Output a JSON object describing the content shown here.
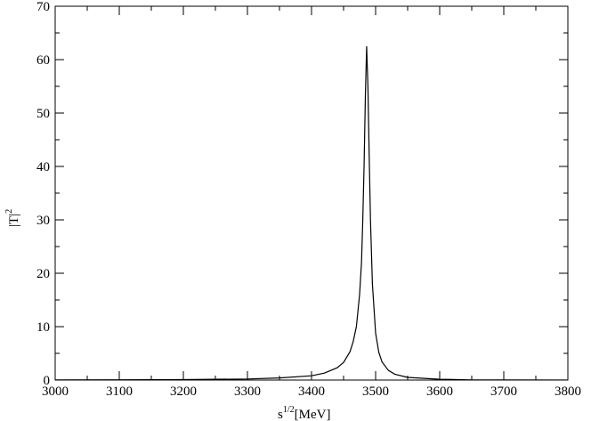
{
  "chart_data": {
    "type": "line",
    "title": "",
    "xlabel": {
      "base": "s",
      "sup": "1/2",
      "rest": "[MeV]"
    },
    "ylabel": {
      "base": "|T|",
      "sup": "2"
    },
    "xlim": [
      3000,
      3800
    ],
    "ylim": [
      0,
      70
    ],
    "xticks": [
      3000,
      3100,
      3200,
      3300,
      3400,
      3500,
      3600,
      3700,
      3800
    ],
    "yticks": [
      0,
      10,
      20,
      30,
      40,
      50,
      60,
      70
    ],
    "grid": false,
    "legend": "none",
    "line_color": "#000000",
    "series": [
      {
        "x": [
          3000,
          3100,
          3200,
          3300,
          3350,
          3400,
          3420,
          3440,
          3450,
          3460,
          3465,
          3470,
          3475,
          3478,
          3480,
          3482,
          3484,
          3486,
          3488,
          3490,
          3492,
          3495,
          3500,
          3505,
          3510,
          3520,
          3530,
          3550,
          3600,
          3650,
          3700,
          3800
        ],
        "y": [
          0.02,
          0.04,
          0.08,
          0.2,
          0.4,
          0.8,
          1.3,
          2.3,
          3.3,
          5.3,
          7.2,
          10.0,
          16.0,
          22.0,
          30.0,
          40.0,
          53.0,
          62.5,
          55.0,
          42.0,
          30.0,
          18.0,
          8.8,
          5.2,
          3.4,
          1.8,
          1.1,
          0.5,
          0.15,
          0.03,
          0.02,
          0.01
        ]
      }
    ]
  }
}
